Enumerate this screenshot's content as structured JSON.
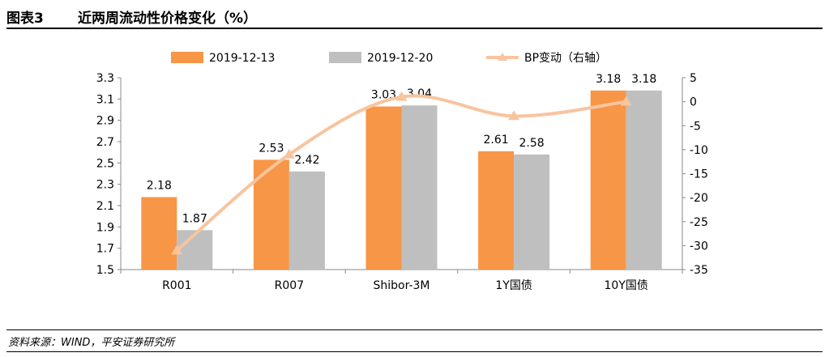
{
  "header": {
    "figure_label": "图表3",
    "title": "近两周流动性价格变化（%）"
  },
  "footer": {
    "source": "资料来源：WIND，平安证券研究所"
  },
  "colors": {
    "series1": "#F79646",
    "series2": "#BFBFBF",
    "line": "#F8C49E",
    "axis": "#888888"
  },
  "chart_data": {
    "type": "bar",
    "categories": [
      "R001",
      "R007",
      "Shibor-3M",
      "1Y国债",
      "10Y国债"
    ],
    "series": [
      {
        "name": "2019-12-13",
        "type": "bar",
        "axis": "left",
        "values": [
          2.18,
          2.53,
          3.03,
          2.61,
          3.18
        ],
        "labels": [
          "2.18",
          "2.53",
          "3.03",
          "2.61",
          "3.18"
        ]
      },
      {
        "name": "2019-12-20",
        "type": "bar",
        "axis": "left",
        "values": [
          1.87,
          2.42,
          3.04,
          2.58,
          3.18
        ],
        "labels": [
          "1.87",
          "2.42",
          "3.04",
          "2.58",
          "3.18"
        ]
      },
      {
        "name": "BP变动（右轴）",
        "type": "line",
        "axis": "right",
        "values": [
          -31,
          -11,
          1,
          -3,
          0
        ]
      }
    ],
    "left_axis": {
      "min": 1.5,
      "max": 3.3,
      "ticks": [
        "1.5",
        "1.7",
        "1.9",
        "2.1",
        "2.3",
        "2.5",
        "2.7",
        "2.9",
        "3.1",
        "3.3"
      ]
    },
    "right_axis": {
      "min": -35,
      "max": 5,
      "ticks": [
        "-35",
        "-30",
        "-25",
        "-20",
        "-15",
        "-10",
        "-5",
        "0",
        "5"
      ]
    },
    "grid": false,
    "legend_position": "top"
  }
}
